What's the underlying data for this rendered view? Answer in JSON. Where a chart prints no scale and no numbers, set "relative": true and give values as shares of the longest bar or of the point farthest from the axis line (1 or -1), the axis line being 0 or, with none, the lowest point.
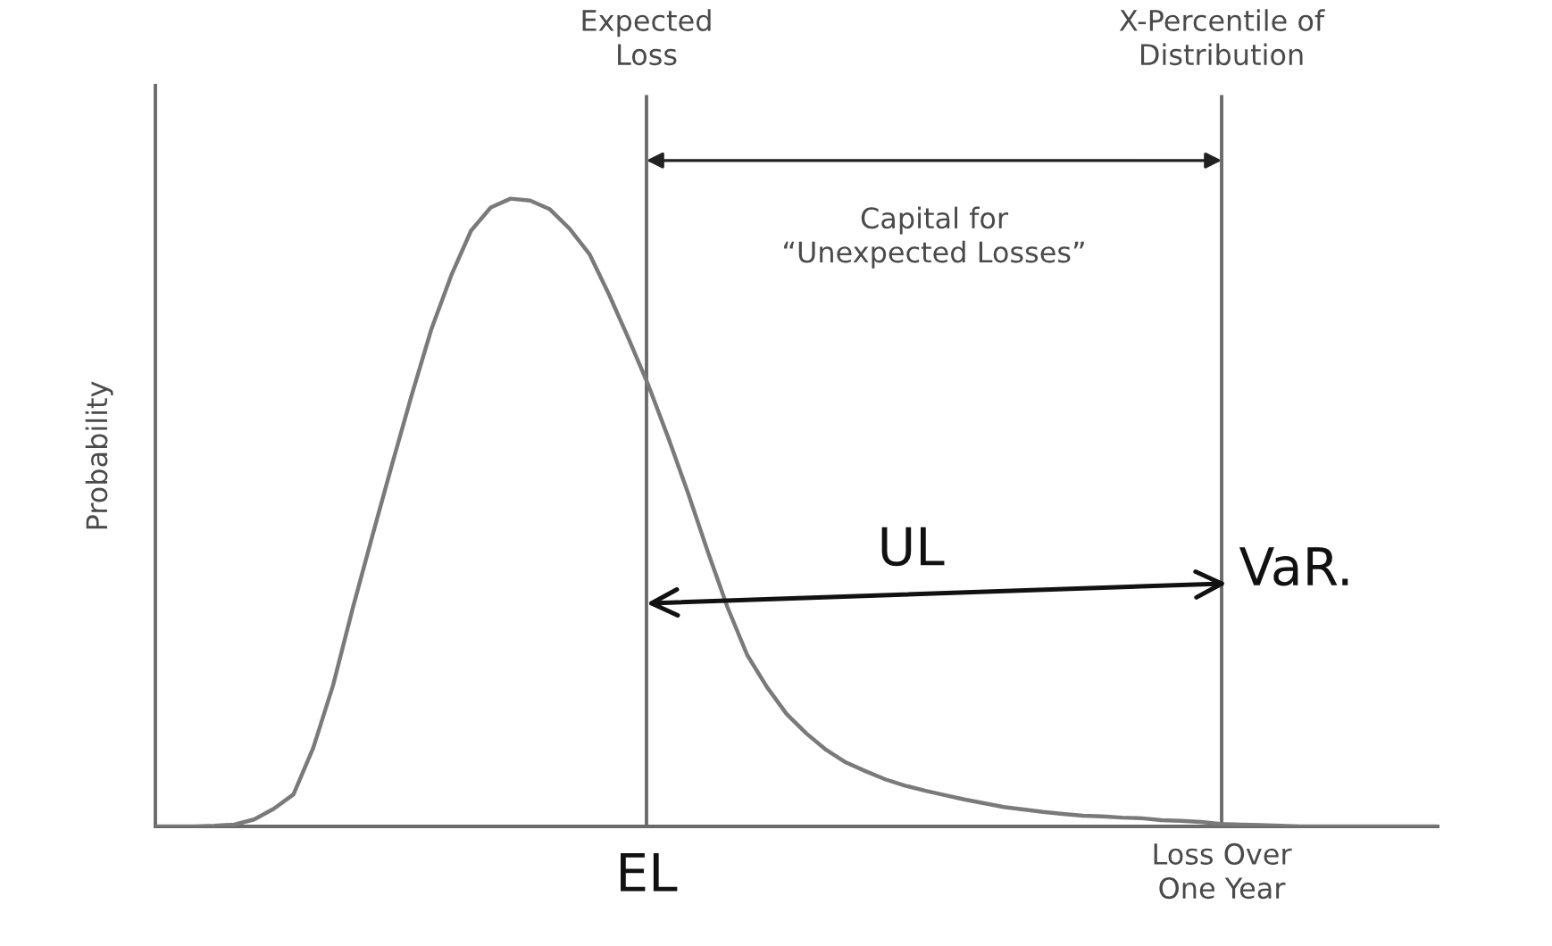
{
  "chart_data": {
    "type": "line",
    "relative": true,
    "ylabel": "Probability",
    "xlabel": "Loss Over\nOne Year",
    "line_style": "solid",
    "categories": [
      null,
      null,
      null,
      null,
      null,
      null,
      null,
      null,
      null,
      null,
      null,
      null,
      null,
      null,
      null,
      null,
      null,
      null,
      null,
      null,
      null,
      null,
      null,
      null,
      null,
      null,
      null,
      null,
      null,
      null,
      null,
      null,
      null,
      null,
      null,
      null,
      null,
      null,
      null,
      null,
      null,
      null,
      null,
      null,
      null,
      null,
      null,
      null,
      null,
      null,
      null,
      null,
      null,
      null,
      null,
      null,
      null,
      null,
      null,
      null,
      null,
      null,
      null,
      null,
      null,
      null
    ],
    "series": [
      {
        "color": "#7a7a7a",
        "values": [
          0,
          0,
          0,
          0.001,
          0.003,
          0.011,
          0.028,
          0.051,
          0.125,
          0.224,
          0.347,
          0.463,
          0.577,
          0.688,
          0.793,
          0.878,
          0.949,
          0.986,
          1,
          0.997,
          0.983,
          0.952,
          0.912,
          0.847,
          0.776,
          0.702,
          0.619,
          0.531,
          0.438,
          0.349,
          0.273,
          0.222,
          0.179,
          0.148,
          0.122,
          0.102,
          0.088,
          0.075,
          0.065,
          0.057,
          0.05,
          0.043,
          0.037,
          0.031,
          0.027,
          0.023,
          0.02,
          0.017,
          0.016,
          0.014,
          0.013,
          0.01,
          0.009,
          0.007,
          0.004,
          0.003,
          0.002,
          0.001,
          0,
          0,
          0,
          0,
          0,
          0,
          0,
          0
        ]
      }
    ],
    "annotations": [
      "Expected\nLoss",
      "X-Percentile of\nDistribution",
      "Capital for\n“Unexpected Losses”",
      "UL",
      "VaR.",
      "EL"
    ]
  }
}
